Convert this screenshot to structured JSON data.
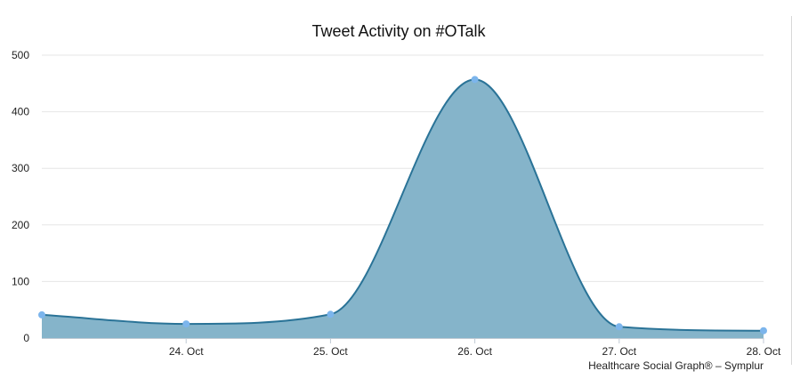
{
  "chart_data": {
    "type": "area",
    "title": "Tweet Activity on #OTalk",
    "credit": "Healthcare Social Graph® – Symplur",
    "x_ticks": [
      "24. Oct",
      "25. Oct",
      "26. Oct",
      "27. Oct",
      "28. Oct"
    ],
    "y_ticks": [
      "0",
      "100",
      "200",
      "300",
      "400",
      "500"
    ],
    "ylim": [
      0,
      500
    ],
    "xlim": [
      "2018-10-23T12:00",
      "2018-10-28T12:00"
    ],
    "grid": true,
    "legend": "none",
    "series": [
      {
        "x": [
          "2018-10-23T12:00",
          "2018-10-24T12:00",
          "2018-10-25T12:00",
          "2018-10-26T12:00",
          "2018-10-27T12:00",
          "2018-10-28T12:00"
        ],
        "values": [
          41,
          25,
          42,
          457,
          20,
          13
        ]
      }
    ],
    "colors": {
      "area_fill": "#85b4ca",
      "line": "#2a7397",
      "marker": "#7cb5ec",
      "grid": "#e6e6e6",
      "axis": "#c0cad4"
    }
  }
}
